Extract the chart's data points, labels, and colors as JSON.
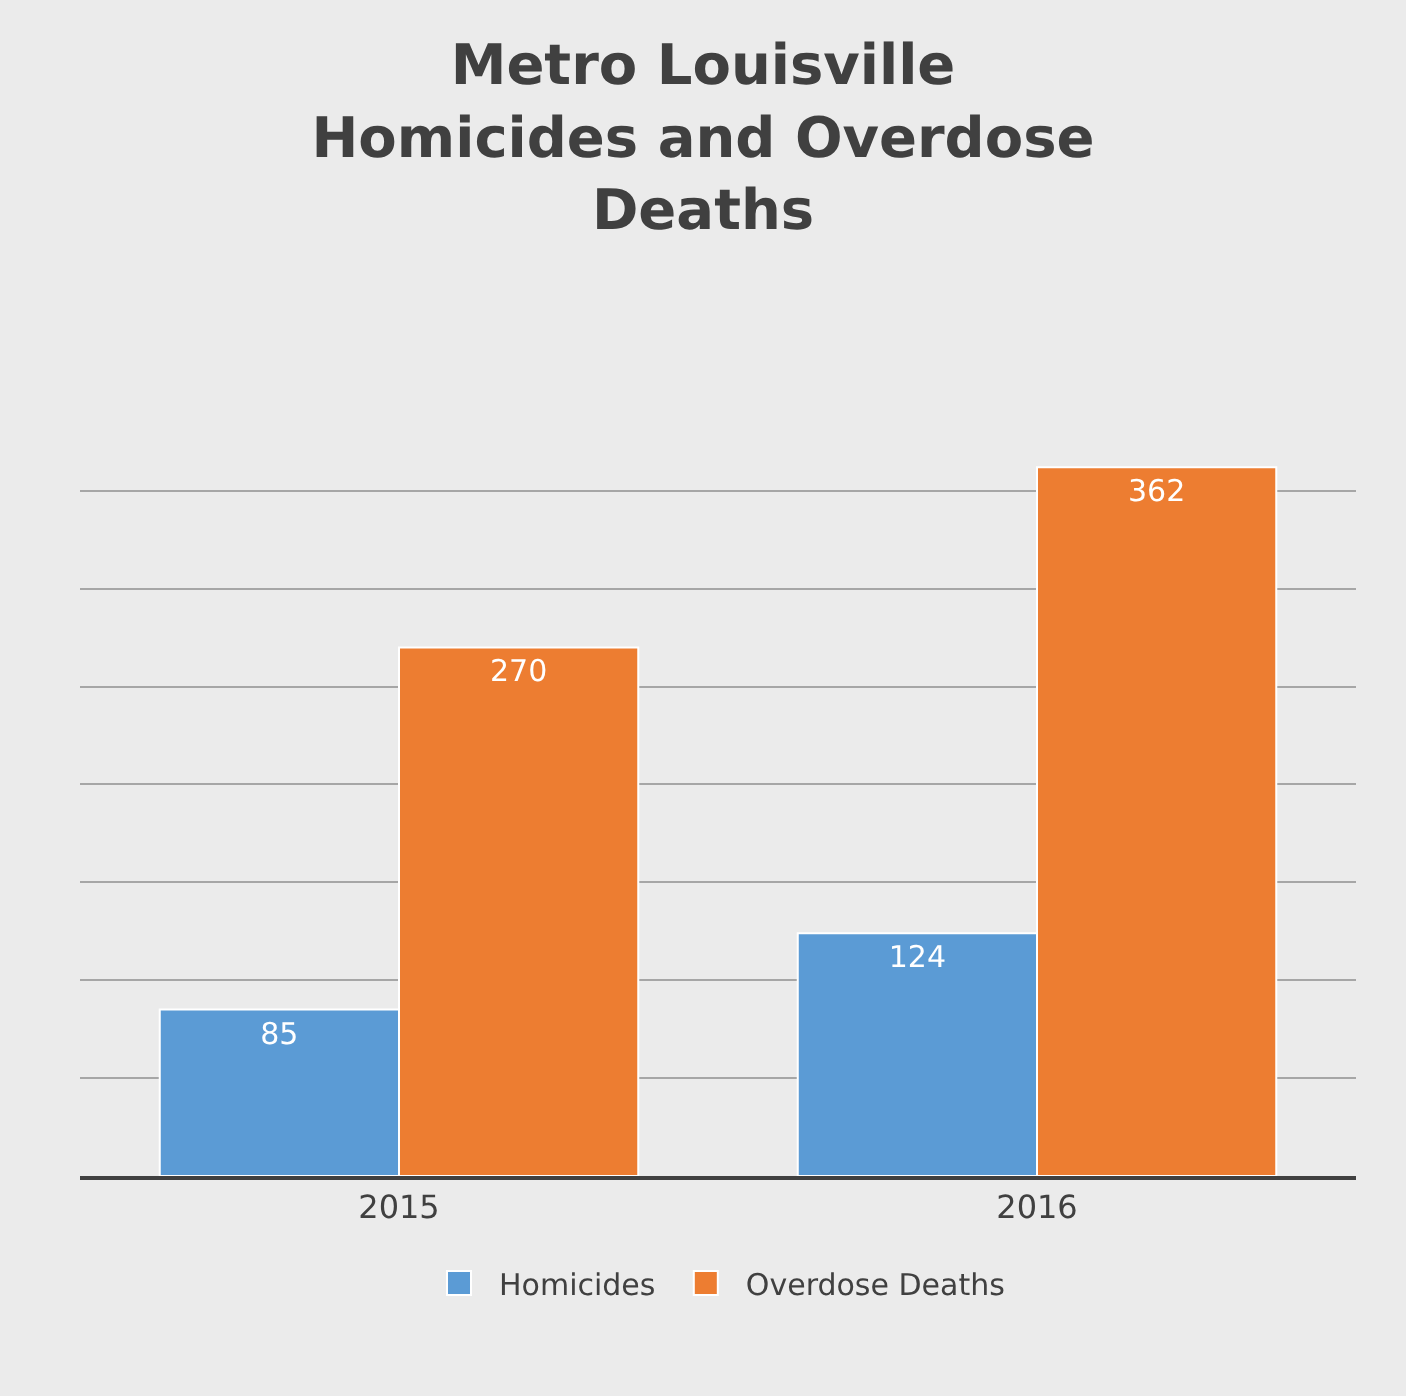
{
  "chart_data": {
    "type": "bar",
    "title": "Metro Louisville\nHomicides and Overdose\nDeaths",
    "categories": [
      "2015",
      "2016"
    ],
    "series": [
      {
        "name": "Homicides",
        "color": "#5b9bd5",
        "values": [
          85,
          124
        ]
      },
      {
        "name": "Overdose Deaths",
        "color": "#ed7d31",
        "values": [
          270,
          362
        ]
      }
    ],
    "yticks": [
      {
        "value": 50,
        "label": null
      },
      {
        "value": 100,
        "label": null
      },
      {
        "value": 150,
        "label": null
      },
      {
        "value": 200,
        "label": null
      },
      {
        "value": 250,
        "label": null
      },
      {
        "value": 300,
        "label": null
      },
      {
        "value": 350,
        "label": null
      }
    ],
    "tick_labels": "x",
    "grid": "y",
    "legend": "bottom",
    "data_labels": true
  }
}
